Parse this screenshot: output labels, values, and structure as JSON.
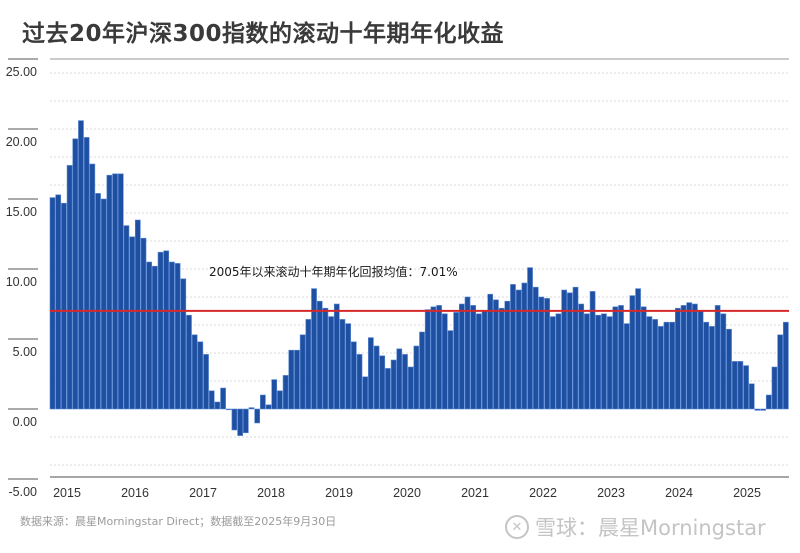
{
  "title": "过去20年沪深300指数的滚动十年期年化收益",
  "footer": "数据来源：晨星Morningstar Direct；数据截至2025年9月30日",
  "watermark": {
    "logo_icon": "snowball-logo-icon",
    "text": "雪球：晨星Morningstar"
  },
  "colors": {
    "bar_fill": "#1f4fa0",
    "bar_edge": "#5a8ad6",
    "average_line": "#d42a2a",
    "grid": "#d8d8d8",
    "axis": "#888888"
  },
  "chart_data": {
    "type": "bar",
    "title": "过去20年沪深300指数的滚动十年期年化收益",
    "xlabel": "",
    "ylabel": "",
    "ylim": [
      -5,
      25
    ],
    "yticks": [
      25,
      20,
      15,
      10,
      5,
      0,
      -5
    ],
    "ytick_labels": [
      "25.00",
      "20.00",
      "15.00",
      "10.00",
      "5.00",
      "0.00",
      "-5.00"
    ],
    "grid": true,
    "grid_step": 2,
    "frequency": "monthly",
    "period_start": "2014-08",
    "period_end": "2025-09",
    "xtick_labels": [
      "2015",
      "2016",
      "2017",
      "2018",
      "2019",
      "2020",
      "2021",
      "2022",
      "2023",
      "2024",
      "2025"
    ],
    "values": [
      15.1,
      15.3,
      14.7,
      17.4,
      19.3,
      20.6,
      19.4,
      17.5,
      15.4,
      15.0,
      16.7,
      16.8,
      16.8,
      13.1,
      12.3,
      13.5,
      12.2,
      10.5,
      10.2,
      11.2,
      11.3,
      10.5,
      10.4,
      9.3,
      6.7,
      5.3,
      4.8,
      3.9,
      1.3,
      0.5,
      1.5,
      -0.05,
      -1.5,
      -1.9,
      -1.7,
      0.1,
      -1.0,
      1.0,
      0.3,
      2.1,
      1.3,
      2.4,
      4.2,
      4.2,
      5.3,
      6.4,
      8.6,
      7.7,
      7.2,
      6.6,
      7.5,
      6.4,
      6.1,
      4.8,
      3.9,
      2.3,
      5.1,
      4.5,
      3.8,
      2.9,
      3.5,
      4.3,
      3.9,
      3.0,
      4.5,
      5.5,
      7.1,
      7.3,
      7.4,
      6.8,
      5.6,
      6.9,
      7.5,
      8.0,
      7.4,
      6.8,
      7.0,
      8.2,
      7.8,
      7.2,
      7.7,
      8.9,
      8.5,
      9.0,
      10.1,
      8.7,
      8.0,
      7.9,
      6.6,
      6.8,
      8.5,
      8.3,
      8.7,
      7.5,
      6.8,
      8.4,
      6.7,
      6.8,
      6.6,
      7.3,
      7.4,
      6.1,
      8.1,
      8.6,
      7.3,
      6.6,
      6.4,
      5.9,
      6.2,
      6.2,
      7.2,
      7.4,
      7.6,
      7.5,
      7.0,
      6.2,
      5.9,
      7.4,
      6.8,
      5.7,
      3.4,
      3.4,
      3.1,
      1.8,
      -0.1,
      -0.1,
      1.0,
      3.0,
      5.3,
      6.2
    ],
    "reference_line": {
      "value": 7.01,
      "label": "2005年以来滚动十年期年化回报均值：7.01%"
    },
    "legend": "none"
  }
}
